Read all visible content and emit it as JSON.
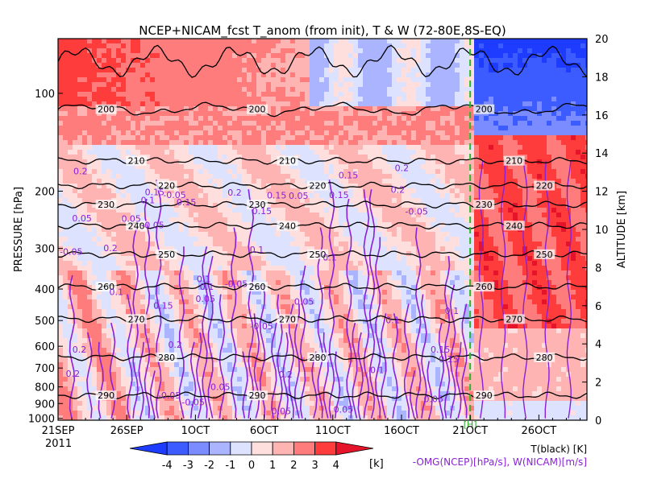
{
  "chart_data": {
    "type": "heatmap",
    "title": "NCEP+NICAM_fcst T_anom (from init), T & W  (72-80E,8S-EQ)",
    "ylabel": "PRESSURE [hPa]",
    "y2label": "ALTITUDE [km]",
    "year_label": "2011",
    "x_ticks": [
      "21SEP",
      "26SEP",
      "1OCT",
      "6OCT",
      "11OCT",
      "16OCT",
      "21OCT",
      "26OCT"
    ],
    "xlim_days": [
      0,
      38.5
    ],
    "init_marker": {
      "day": 30,
      "label": "[H]"
    },
    "pressure_ticks": [
      {
        "label": "100",
        "value": 100
      },
      {
        "label": "200",
        "value": 200
      },
      {
        "label": "300",
        "value": 300
      },
      {
        "label": "400",
        "value": 400
      },
      {
        "label": "500",
        "value": 500
      },
      {
        "label": "600",
        "value": 600
      },
      {
        "label": "700",
        "value": 700
      },
      {
        "label": "800",
        "value": 800
      },
      {
        "label": "900",
        "value": 900
      },
      {
        "label": "1000",
        "value": 1000
      }
    ],
    "altitude_ticks": [
      "0",
      "2",
      "4",
      "6",
      "8",
      "10",
      "12",
      "14",
      "16",
      "18",
      "20"
    ],
    "ylim_altitude_km": [
      0,
      20
    ],
    "colorbar": {
      "tick_labels": [
        "-4",
        "-3",
        "-2",
        "-1",
        "0",
        "1",
        "2",
        "3",
        "4"
      ],
      "unit": "[k]",
      "colors": [
        "#1e3cff",
        "#3c5cff",
        "#7a8cff",
        "#aab4ff",
        "#dde2ff",
        "#ffdede",
        "#ffb4b4",
        "#ff7c7c",
        "#ff3c3c",
        "#e6142a"
      ]
    },
    "temperature_contours": {
      "color": "#000000",
      "levels": [
        "200",
        "210",
        "220",
        "230",
        "240",
        "250",
        "260",
        "270",
        "280",
        "290"
      ],
      "approx_altitude_km": [
        16.3,
        13.6,
        12.3,
        11.3,
        10.2,
        8.7,
        7.0,
        5.3,
        3.3,
        1.3
      ]
    },
    "w_contours": {
      "color": "#8a1fd8",
      "labels": [
        "0.05",
        "0.1",
        "0.15",
        "0.2",
        "-0.05"
      ]
    },
    "legend": {
      "t_label": "T(black) [K]",
      "w_label": "-OMG(NCEP)[hPa/s], W(NICAM)[m/s]"
    }
  }
}
